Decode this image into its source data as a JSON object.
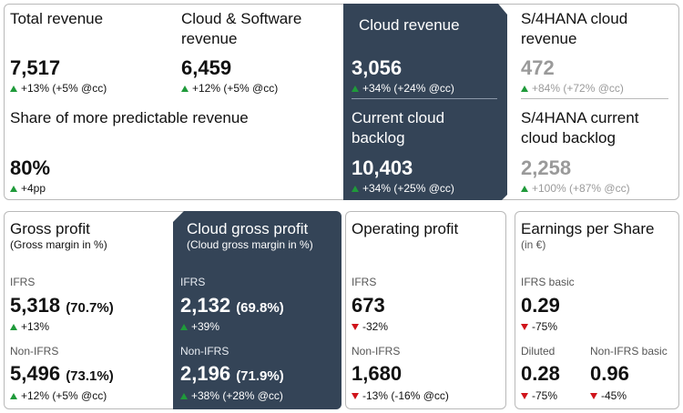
{
  "top": {
    "total_revenue": {
      "label": "Total revenue",
      "value": "7,517",
      "change": "+13% (+5% @cc)"
    },
    "cloud_software": {
      "label": "Cloud & Software revenue",
      "value": "6,459",
      "change": "+12% (+5% @cc)"
    },
    "cloud_revenue": {
      "label": "Cloud revenue",
      "value": "3,056",
      "change": "+34% (+24% @cc)"
    },
    "s4_cloud_revenue": {
      "label": "S/4HANA cloud revenue",
      "value": "472",
      "change": "+84% (+72% @cc)"
    },
    "predictable": {
      "label": "Share of more predictable revenue",
      "value": "80%",
      "change": "+4pp"
    },
    "cloud_backlog": {
      "label": "Current cloud backlog",
      "value": "10,403",
      "change": "+34% (+25% @cc)"
    },
    "s4_backlog": {
      "label": "S/4HANA current cloud backlog",
      "value": "2,258",
      "change": "+100% (+87% @cc)"
    }
  },
  "gross_profit": {
    "title": "Gross profit",
    "subtitle": "(Gross margin in %)",
    "ifrs_label": "IFRS",
    "ifrs_value": "5,318",
    "ifrs_pct": "(70.7%)",
    "ifrs_change": "+13%",
    "nonifrs_label": "Non-IFRS",
    "nonifrs_value": "5,496",
    "nonifrs_pct": "(73.1%)",
    "nonifrs_change": "+12% (+5% @cc)"
  },
  "cloud_gross_profit": {
    "title": "Cloud gross profit",
    "subtitle": "(Cloud gross margin in %)",
    "ifrs_label": "IFRS",
    "ifrs_value": "2,132",
    "ifrs_pct": "(69.8%)",
    "ifrs_change": "+39%",
    "nonifrs_label": "Non-IFRS",
    "nonifrs_value": "2,196",
    "nonifrs_pct": "(71.9%)",
    "nonifrs_change": "+38% (+28% @cc)"
  },
  "operating_profit": {
    "title": "Operating profit",
    "ifrs_label": "IFRS",
    "ifrs_value": "673",
    "ifrs_change": "-32%",
    "nonifrs_label": "Non-IFRS",
    "nonifrs_value": "1,680",
    "nonifrs_change": "-13% (-16% @cc)"
  },
  "eps": {
    "title": "Earnings per Share",
    "subtitle": "(in €)",
    "basic_label": "IFRS basic",
    "basic_value": "0.29",
    "basic_change": "-75%",
    "diluted_label": "Diluted",
    "diluted_value": "0.28",
    "diluted_change": "-75%",
    "nonifrs_label": "Non-IFRS basic",
    "nonifrs_value": "0.96",
    "nonifrs_change": "-45%"
  },
  "colors": {
    "dark_panel": "#344457",
    "up": "#1f9a3a",
    "down": "#d0131a",
    "muted": "#9a9a9a"
  }
}
